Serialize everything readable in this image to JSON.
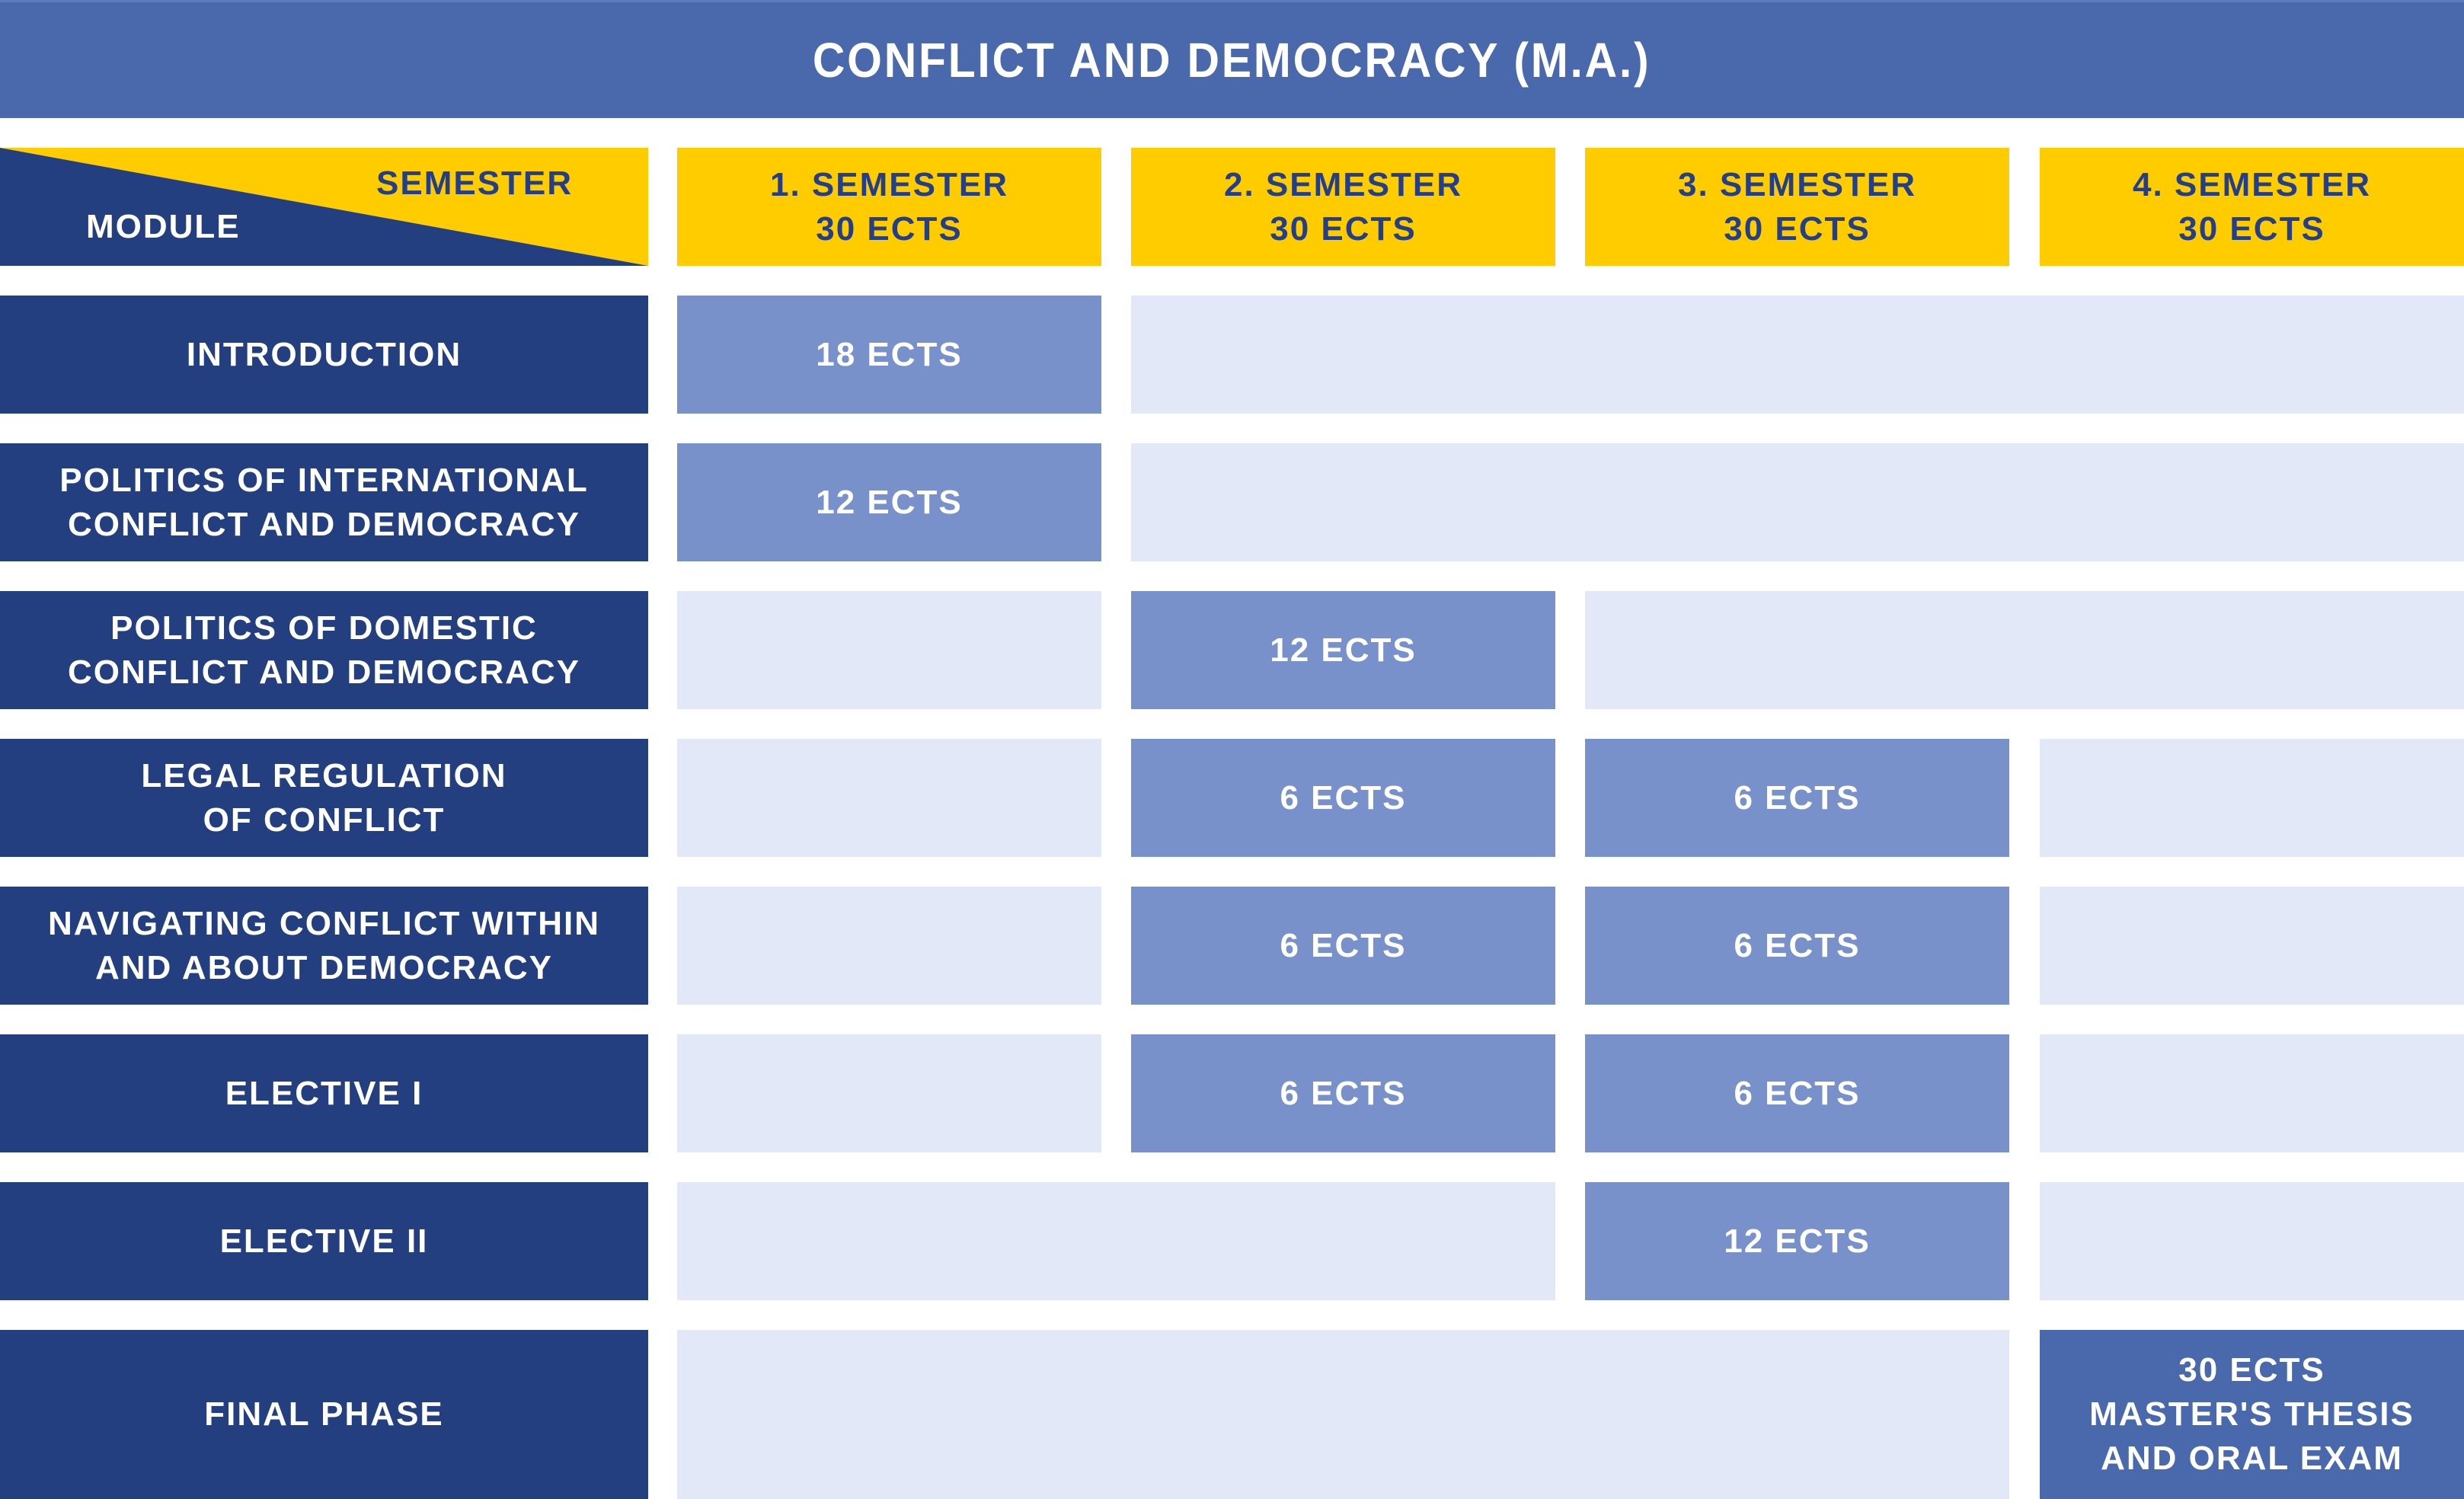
{
  "title": "CONFLICT AND DEMOCRACY (M.A.)",
  "corner": {
    "semester_label": "SEMESTER",
    "module_label": "MODULE"
  },
  "colors": {
    "title_bar": "#4a69ad",
    "header_yellow": "#ffcc00",
    "header_text": "#243f8a",
    "module_navy": "#243f80",
    "ects_filled": "#7891ca",
    "empty_cell": "#e3e8f8",
    "thesis_cell": "#4a69ad"
  },
  "semesters": [
    {
      "name": "1. SEMESTER",
      "ects": "30 ECTS"
    },
    {
      "name": "2. SEMESTER",
      "ects": "30 ECTS"
    },
    {
      "name": "3. SEMESTER",
      "ects": "30 ECTS"
    },
    {
      "name": "4. SEMESTER",
      "ects": "30 ECTS"
    }
  ],
  "modules": [
    {
      "label": "INTRODUCTION",
      "cells": [
        {
          "start": 1,
          "span": 1,
          "type": "filled",
          "text": "18 ECTS"
        },
        {
          "start": 2,
          "span": 3,
          "type": "empty",
          "text": ""
        }
      ]
    },
    {
      "label": "POLITICS OF INTERNATIONAL\nCONFLICT AND DEMOCRACY",
      "cells": [
        {
          "start": 1,
          "span": 1,
          "type": "filled",
          "text": "12 ECTS"
        },
        {
          "start": 2,
          "span": 3,
          "type": "empty",
          "text": ""
        }
      ]
    },
    {
      "label": "POLITICS OF DOMESTIC\nCONFLICT AND DEMOCRACY",
      "cells": [
        {
          "start": 1,
          "span": 1,
          "type": "empty",
          "text": ""
        },
        {
          "start": 2,
          "span": 1,
          "type": "filled",
          "text": "12 ECTS"
        },
        {
          "start": 3,
          "span": 2,
          "type": "empty",
          "text": ""
        }
      ]
    },
    {
      "label": "LEGAL REGULATION\nOF CONFLICT",
      "cells": [
        {
          "start": 1,
          "span": 1,
          "type": "empty",
          "text": ""
        },
        {
          "start": 2,
          "span": 1,
          "type": "filled",
          "text": "6 ECTS"
        },
        {
          "start": 3,
          "span": 1,
          "type": "filled",
          "text": "6 ECTS"
        },
        {
          "start": 4,
          "span": 1,
          "type": "empty",
          "text": ""
        }
      ]
    },
    {
      "label": "NAVIGATING CONFLICT WITHIN\nAND ABOUT DEMOCRACY",
      "cells": [
        {
          "start": 1,
          "span": 1,
          "type": "empty",
          "text": ""
        },
        {
          "start": 2,
          "span": 1,
          "type": "filled",
          "text": "6 ECTS"
        },
        {
          "start": 3,
          "span": 1,
          "type": "filled",
          "text": "6 ECTS"
        },
        {
          "start": 4,
          "span": 1,
          "type": "empty",
          "text": ""
        }
      ]
    },
    {
      "label": "ELECTIVE I",
      "cells": [
        {
          "start": 1,
          "span": 1,
          "type": "empty",
          "text": ""
        },
        {
          "start": 2,
          "span": 1,
          "type": "filled",
          "text": "6 ECTS"
        },
        {
          "start": 3,
          "span": 1,
          "type": "filled",
          "text": "6 ECTS"
        },
        {
          "start": 4,
          "span": 1,
          "type": "empty",
          "text": ""
        }
      ]
    },
    {
      "label": "ELECTIVE II",
      "cells": [
        {
          "start": 1,
          "span": 2,
          "type": "empty",
          "text": ""
        },
        {
          "start": 3,
          "span": 1,
          "type": "filled",
          "text": "12 ECTS"
        },
        {
          "start": 4,
          "span": 1,
          "type": "empty",
          "text": ""
        }
      ]
    },
    {
      "label": "FINAL PHASE",
      "cells": [
        {
          "start": 1,
          "span": 3,
          "type": "empty",
          "text": ""
        },
        {
          "start": 4,
          "span": 1,
          "type": "thesis",
          "text": "30 ECTS\nMASTER'S THESIS\nAND ORAL EXAM"
        }
      ]
    }
  ]
}
